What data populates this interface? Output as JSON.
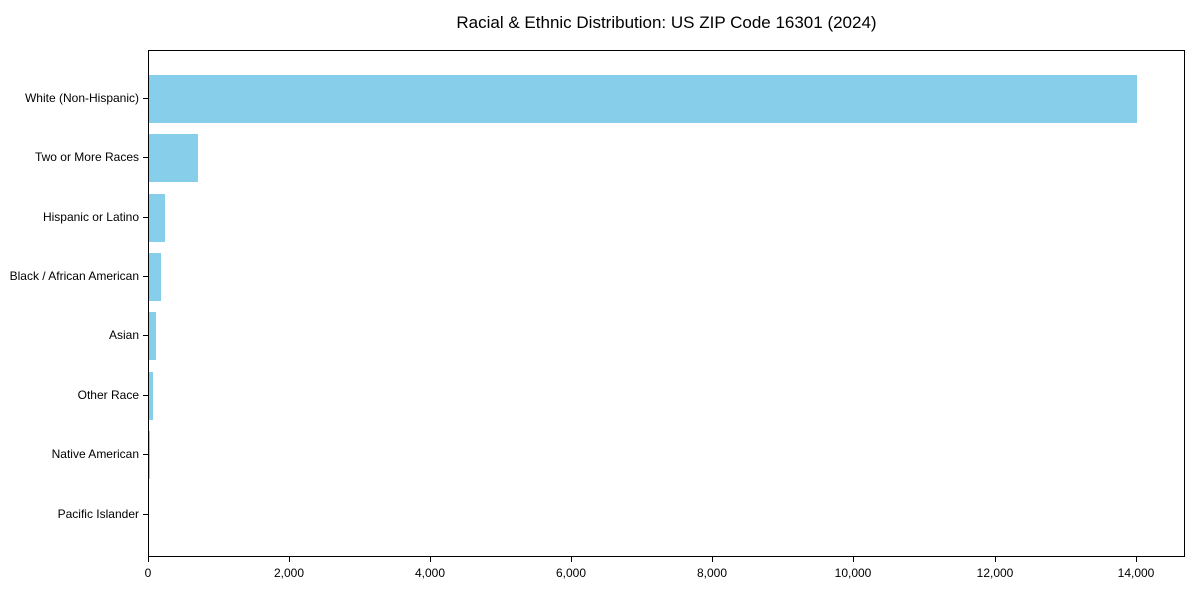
{
  "chart_data": {
    "type": "bar",
    "orientation": "horizontal",
    "title": "Racial & Ethnic Distribution: US ZIP Code 16301 (2024)",
    "categories": [
      "White (Non-Hispanic)",
      "Two or More Races",
      "Hispanic or Latino",
      "Black / African American",
      "Asian",
      "Other Race",
      "Native American",
      "Pacific Islander"
    ],
    "values": [
      14000,
      700,
      230,
      170,
      100,
      60,
      15,
      0
    ],
    "xlabel": "",
    "ylabel": "",
    "xlim": [
      0,
      14700
    ],
    "xticks": [
      0,
      2000,
      4000,
      6000,
      8000,
      10000,
      12000,
      14000
    ],
    "xtick_labels": [
      "0",
      "2,000",
      "4,000",
      "6,000",
      "8,000",
      "10,000",
      "12,000",
      "14,000"
    ],
    "bar_color": "#87CEEB",
    "axis_color": "#000000",
    "background": "#ffffff",
    "grid": false,
    "legend": null
  }
}
